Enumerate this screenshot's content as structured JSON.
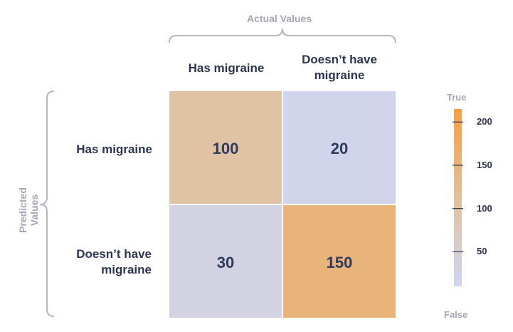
{
  "chart_data": {
    "type": "heatmap",
    "title": "",
    "xlabel": "Actual Values",
    "ylabel": "Predicted Values",
    "x_categories": [
      "Has migraine",
      "Doesn’t have migraine"
    ],
    "x_categories_lines": [
      [
        "Has migraine"
      ],
      [
        "Doesn’t have",
        "migraine"
      ]
    ],
    "y_categories": [
      "Has migraine",
      "Doesn’t have migraine"
    ],
    "y_categories_lines": [
      [
        "Has migraine"
      ],
      [
        "Doesn’t have",
        "migraine"
      ]
    ],
    "values": [
      [
        100,
        20
      ],
      [
        30,
        150
      ]
    ],
    "colorbar": {
      "min": 10,
      "max": 215,
      "ticks": [
        50,
        100,
        150,
        200
      ],
      "top_label": "True",
      "bottom_label": "False",
      "colors": [
        "#cfd6f3",
        "#e0c3a3",
        "#f5a040"
      ]
    }
  }
}
